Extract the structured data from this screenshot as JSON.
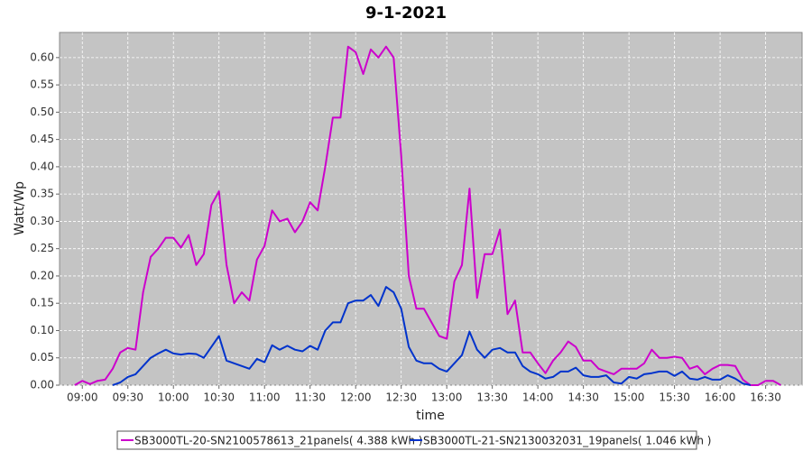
{
  "chart_data": {
    "type": "line",
    "title": "9-1-2021",
    "xlabel": "time",
    "ylabel": "Watt/Wp",
    "x": [
      "08:55",
      "09:00",
      "09:05",
      "09:10",
      "09:15",
      "09:20",
      "09:25",
      "09:30",
      "09:35",
      "09:40",
      "09:45",
      "09:50",
      "09:55",
      "10:00",
      "10:05",
      "10:10",
      "10:15",
      "10:20",
      "10:25",
      "10:30",
      "10:35",
      "10:40",
      "10:45",
      "10:50",
      "10:55",
      "11:00",
      "11:05",
      "11:10",
      "11:15",
      "11:20",
      "11:25",
      "11:30",
      "11:35",
      "11:40",
      "11:45",
      "11:50",
      "11:55",
      "12:00",
      "12:05",
      "12:10",
      "12:15",
      "12:20",
      "12:25",
      "12:30",
      "12:35",
      "12:40",
      "12:45",
      "12:50",
      "12:55",
      "13:00",
      "13:05",
      "13:10",
      "13:15",
      "13:20",
      "13:25",
      "13:30",
      "13:35",
      "13:40",
      "13:45",
      "13:50",
      "13:55",
      "14:00",
      "14:05",
      "14:10",
      "14:15",
      "14:20",
      "14:25",
      "14:30",
      "14:35",
      "14:40",
      "14:45",
      "14:50",
      "14:55",
      "15:00",
      "15:05",
      "15:10",
      "15:15",
      "15:20",
      "15:25",
      "15:30",
      "15:35",
      "15:40",
      "15:45",
      "15:50",
      "15:55",
      "16:00",
      "16:05",
      "16:10",
      "16:15",
      "16:20",
      "16:25",
      "16:30",
      "16:35",
      "16:40"
    ],
    "series": [
      {
        "name": "SB3000TL-20-SN2100578613_21panels( 4.388 kWh )",
        "color": "#cc00cc",
        "values": [
          0,
          0.008,
          0.002,
          0.008,
          0.01,
          0.03,
          0.06,
          0.068,
          0.065,
          0.17,
          0.235,
          0.25,
          0.27,
          0.27,
          0.252,
          0.275,
          0.22,
          0.24,
          0.33,
          0.355,
          0.22,
          0.15,
          0.17,
          0.155,
          0.23,
          0.255,
          0.32,
          0.3,
          0.305,
          0.28,
          0.3,
          0.335,
          0.32,
          0.4,
          0.49,
          0.49,
          0.62,
          0.61,
          0.57,
          0.615,
          0.6,
          0.62,
          0.6,
          0.42,
          0.2,
          0.14,
          0.14,
          0.115,
          0.09,
          0.085,
          0.19,
          0.22,
          0.36,
          0.16,
          0.24,
          0.24,
          0.285,
          0.13,
          0.155,
          0.06,
          0.06,
          0.04,
          0.022,
          0.045,
          0.06,
          0.08,
          0.07,
          0.045,
          0.045,
          0.03,
          0.025,
          0.02,
          0.03,
          0.03,
          0.03,
          0.04,
          0.065,
          0.05,
          0.05,
          0.052,
          0.05,
          0.03,
          0.035,
          0.02,
          0.03,
          0.037,
          0.037,
          0.035,
          0.01,
          0,
          0,
          0.008,
          0.008,
          0
        ]
      },
      {
        "name": "SB3000TL-21-SN2130032031_19panels( 1.046 kWh )",
        "color": "#0033cc",
        "values": [
          null,
          null,
          null,
          null,
          null,
          0,
          0.005,
          0.015,
          0.02,
          0.035,
          0.05,
          0.058,
          0.065,
          0.058,
          0.056,
          0.058,
          0.057,
          0.05,
          0.07,
          0.09,
          0.045,
          0.04,
          0.035,
          0.03,
          0.048,
          0.042,
          0.073,
          0.065,
          0.072,
          0.065,
          0.062,
          0.072,
          0.065,
          0.1,
          0.115,
          0.115,
          0.15,
          0.155,
          0.155,
          0.165,
          0.145,
          0.18,
          0.17,
          0.14,
          0.07,
          0.045,
          0.04,
          0.04,
          0.03,
          0.025,
          0.04,
          0.055,
          0.098,
          0.065,
          0.05,
          0.065,
          0.068,
          0.06,
          0.06,
          0.035,
          0.025,
          0.02,
          0.012,
          0.015,
          0.025,
          0.025,
          0.032,
          0.018,
          0.015,
          0.015,
          0.018,
          0.005,
          0.003,
          0.015,
          0.012,
          0.02,
          0.022,
          0.025,
          0.025,
          0.017,
          0.025,
          0.012,
          0.01,
          0.015,
          0.01,
          0.01,
          0.018,
          0.012,
          0.003,
          0,
          null,
          null,
          null,
          null
        ]
      }
    ],
    "xlim": [
      "08:45",
      "16:54"
    ],
    "xticks": [
      "09:00",
      "09:30",
      "10:00",
      "10:30",
      "11:00",
      "11:30",
      "12:00",
      "12:30",
      "13:00",
      "13:30",
      "14:00",
      "14:30",
      "15:00",
      "15:30",
      "16:00",
      "16:30"
    ],
    "ylim": [
      0,
      0.646
    ],
    "yticks": [
      {
        "value": 0,
        "label": "0.00"
      },
      {
        "value": 0.05,
        "label": "0.05"
      },
      {
        "value": 0.1,
        "label": "0.10"
      },
      {
        "value": 0.15,
        "label": "0.15"
      },
      {
        "value": 0.2,
        "label": "0.20"
      },
      {
        "value": 0.25,
        "label": "0.25"
      },
      {
        "value": 0.3,
        "label": "0.30"
      },
      {
        "value": 0.35,
        "label": "0.35"
      },
      {
        "value": 0.4,
        "label": "0.40"
      },
      {
        "value": 0.45,
        "label": "0.45"
      },
      {
        "value": 0.5,
        "label": "0.50"
      },
      {
        "value": 0.55,
        "label": "0.55"
      },
      {
        "value": 0.6,
        "label": "0.60"
      }
    ],
    "grid": true,
    "legend": "bottom"
  }
}
